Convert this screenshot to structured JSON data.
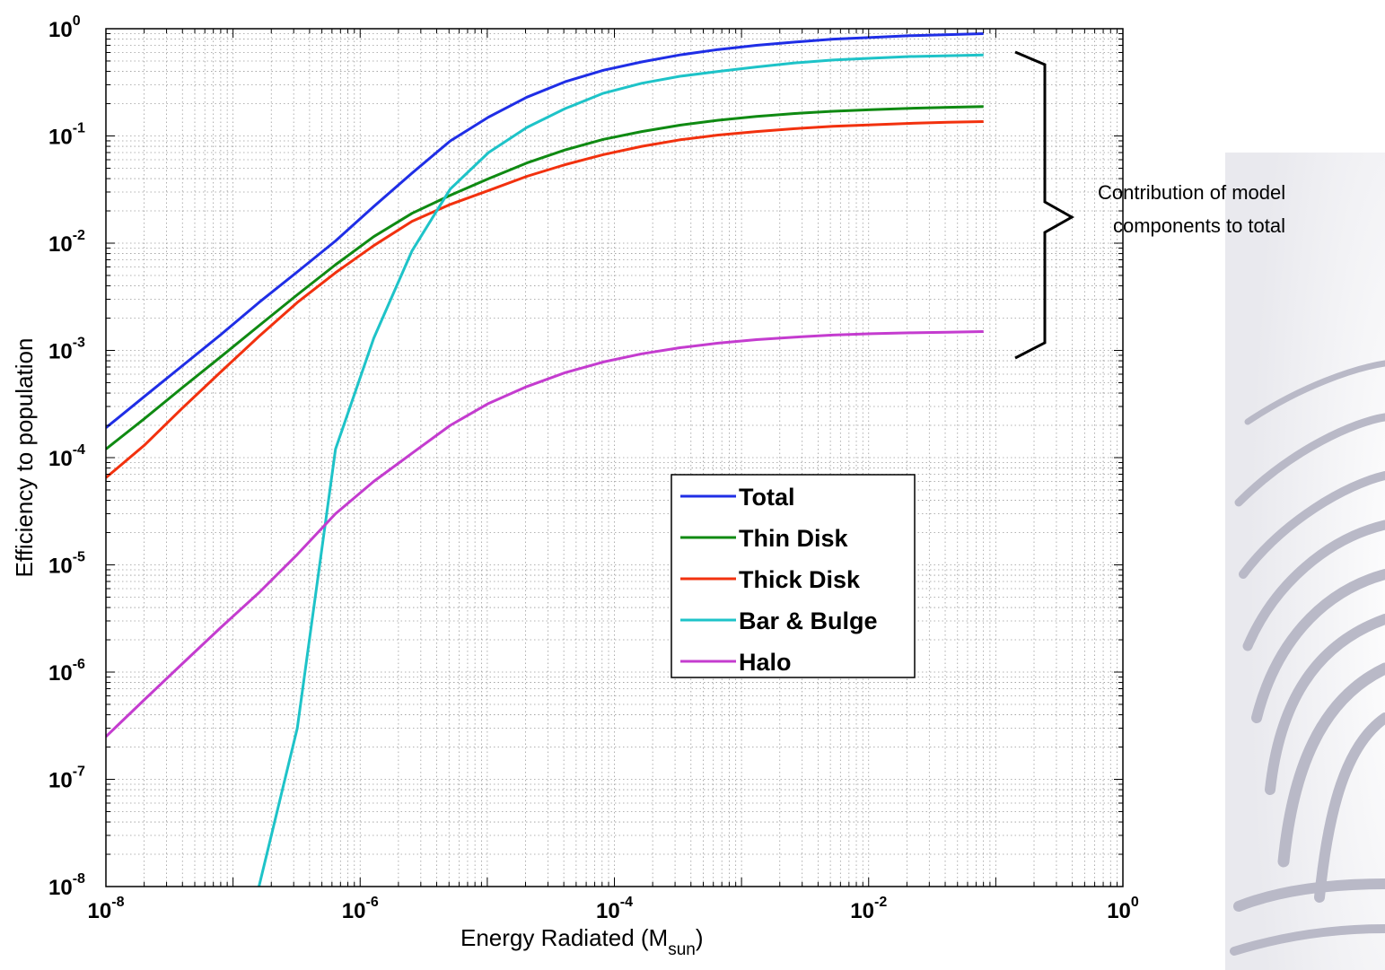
{
  "chart_data": {
    "type": "line",
    "xlabel": "Energy Radiated (M",
    "xlabel_sub": "sun",
    "xlabel_close": ")",
    "ylabel": "Efficiency to population",
    "xscale": "log",
    "yscale": "log",
    "xlim": [
      1e-08,
      1
    ],
    "ylim": [
      1e-08,
      1
    ],
    "grid": true,
    "legend_position": "center-right",
    "x_ticks": [
      {
        "base": "10",
        "exp": "-8",
        "value": 1e-08
      },
      {
        "base": "10",
        "exp": "-6",
        "value": 1e-06
      },
      {
        "base": "10",
        "exp": "-4",
        "value": 0.0001
      },
      {
        "base": "10",
        "exp": "-2",
        "value": 0.01
      },
      {
        "base": "10",
        "exp": "0",
        "value": 1
      }
    ],
    "y_ticks": [
      {
        "base": "10",
        "exp": "0",
        "value": 1
      },
      {
        "base": "10",
        "exp": "-1",
        "value": 0.1
      },
      {
        "base": "10",
        "exp": "-2",
        "value": 0.01
      },
      {
        "base": "10",
        "exp": "-3",
        "value": 0.001
      },
      {
        "base": "10",
        "exp": "-4",
        "value": 0.0001
      },
      {
        "base": "10",
        "exp": "-5",
        "value": 1e-05
      },
      {
        "base": "10",
        "exp": "-6",
        "value": 1e-06
      },
      {
        "base": "10",
        "exp": "-7",
        "value": 1e-07
      },
      {
        "base": "10",
        "exp": "-8",
        "value": 1e-08
      }
    ],
    "x": [
      1e-08,
      2e-08,
      4e-08,
      8e-08,
      1.6e-07,
      3.2e-07,
      6.4e-07,
      1.28e-06,
      2.56e-06,
      5.12e-06,
      1.024e-05,
      2.048e-05,
      4.096e-05,
      8.192e-05,
      0.0001638,
      0.0003277,
      0.0006554,
      0.001311,
      0.002621,
      0.005243,
      0.01049,
      0.02097,
      0.04194,
      0.08
    ],
    "series": [
      {
        "name": "Total",
        "color": "#1f2ee6",
        "values": [
          0.00019,
          0.00037,
          0.00072,
          0.0014,
          0.0028,
          0.0054,
          0.0105,
          0.022,
          0.045,
          0.09,
          0.15,
          0.23,
          0.32,
          0.41,
          0.49,
          0.57,
          0.64,
          0.7,
          0.75,
          0.8,
          0.83,
          0.86,
          0.88,
          0.9
        ]
      },
      {
        "name": "Thin Disk",
        "color": "#0f8a12",
        "values": [
          0.00012,
          0.00023,
          0.00045,
          0.00087,
          0.0017,
          0.0033,
          0.0063,
          0.0115,
          0.019,
          0.028,
          0.04,
          0.056,
          0.074,
          0.093,
          0.11,
          0.126,
          0.14,
          0.152,
          0.162,
          0.17,
          0.176,
          0.181,
          0.185,
          0.188
        ]
      },
      {
        "name": "Thick Disk",
        "color": "#f2310e",
        "values": [
          6.5e-05,
          0.00013,
          0.00029,
          0.00063,
          0.00135,
          0.0028,
          0.0053,
          0.0095,
          0.016,
          0.023,
          0.031,
          0.042,
          0.054,
          0.067,
          0.08,
          0.092,
          0.102,
          0.11,
          0.117,
          0.123,
          0.127,
          0.131,
          0.134,
          0.136
        ]
      },
      {
        "name": "Bar & Bulge",
        "color": "#1ec3c8",
        "values": [
          null,
          null,
          null,
          null,
          1e-08,
          3e-07,
          0.00012,
          0.0013,
          0.0085,
          0.032,
          0.07,
          0.12,
          0.18,
          0.25,
          0.31,
          0.36,
          0.4,
          0.44,
          0.48,
          0.51,
          0.53,
          0.55,
          0.56,
          0.57
        ]
      },
      {
        "name": "Halo",
        "color": "#c43ccf",
        "values": [
          2.5e-07,
          5.5e-07,
          1.2e-06,
          2.6e-06,
          5.5e-06,
          1.25e-05,
          3e-05,
          6e-05,
          0.00011,
          0.0002,
          0.00032,
          0.00046,
          0.00062,
          0.00078,
          0.00093,
          0.00106,
          0.00117,
          0.00126,
          0.00133,
          0.00139,
          0.00143,
          0.00146,
          0.00148,
          0.0015
        ]
      }
    ],
    "annotations": [
      {
        "text_line1": "Contribution of model",
        "text_line2": "components to total"
      }
    ]
  }
}
